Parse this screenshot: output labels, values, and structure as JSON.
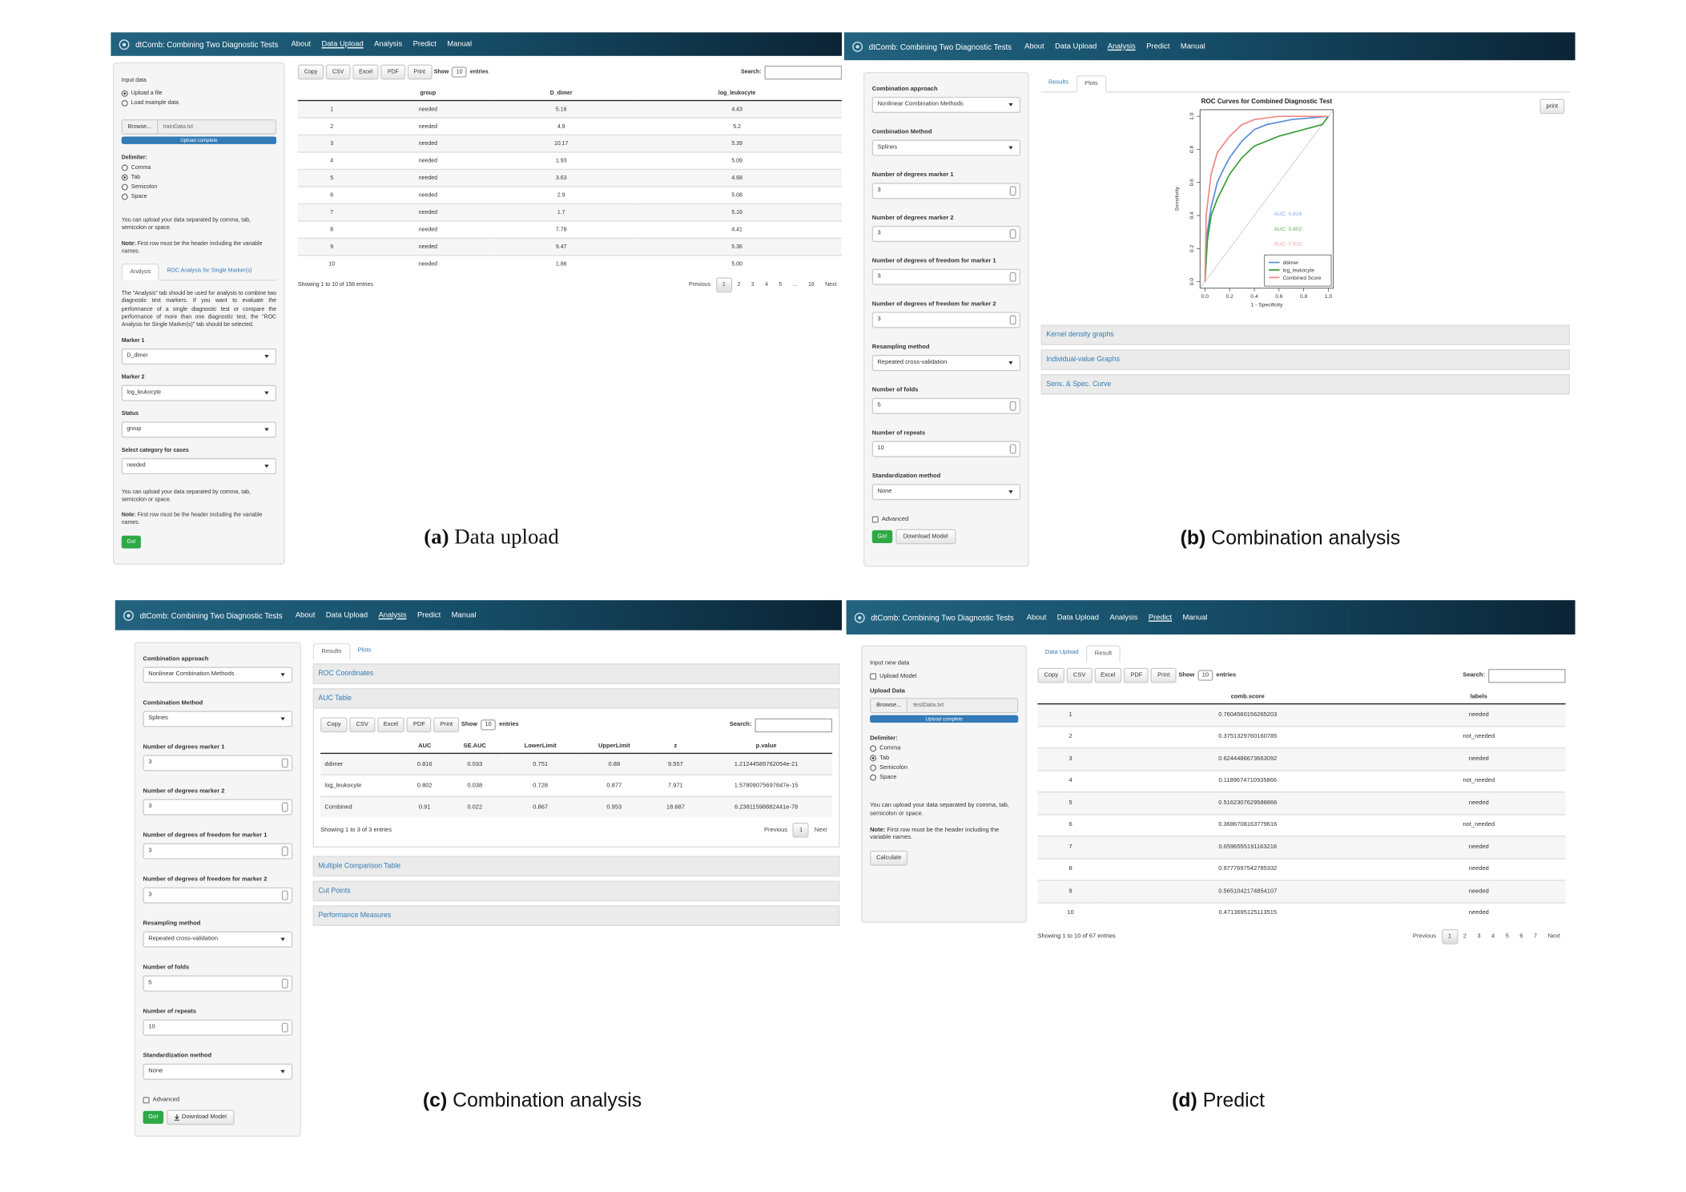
{
  "panels": [
    {
      "caption": {
        "label": "(a)",
        "text": "Data upload"
      },
      "navbar": {
        "brand": "dtComb: Combining Two Diagnostic Tests",
        "menu": [
          "About",
          "Data Upload",
          "Analysis",
          "Predict",
          "Manual"
        ],
        "active": 1
      },
      "sidebar": {
        "input_label": "Input data",
        "source": {
          "options": [
            "Upload a file",
            "Load example data"
          ],
          "selected": 0
        },
        "upload": {
          "button": "Browse...",
          "file": "trainData.txt",
          "status": "Upload complete"
        },
        "delimiter": {
          "label": "Delimiter:",
          "options": [
            "Comma",
            "Tab",
            "Semicolon",
            "Space"
          ],
          "selected": 1
        },
        "help": "You can upload your data separated by comma, tab, semicolon or space.",
        "note": {
          "label": "Note:",
          "text": "First row must be the header including the variable names."
        },
        "tabs": {
          "items": [
            "Analysis",
            "ROC Analysis for Single Marker(s)"
          ],
          "active": 0
        },
        "description": "The \"Analysis\" tab should be used for analysis to combine two diagnostic test markers. If you want to evaluate the performance of a single diagnostic test or compare the performance of more than one diagnostic test, the \"ROC Analysis for Single Marker(s)\" tab should be selected.",
        "fields": [
          {
            "label": "Marker 1",
            "select": "D_dimer"
          },
          {
            "label": "Marker 2",
            "select": "log_leukocyte"
          },
          {
            "label": "Status",
            "select": "group"
          },
          {
            "label": "Select category for cases",
            "select": "needed"
          }
        ],
        "help2": "You can upload your data separated by comma, tab, semicolon or space.",
        "note2": {
          "label": "Note:",
          "text": "First row must be the header including the variable names."
        },
        "go": "Go!"
      },
      "table": {
        "buttons": [
          "Copy",
          "CSV",
          "Excel",
          "PDF",
          "Print"
        ],
        "show": "Show",
        "length": "10",
        "entries": "entries",
        "search": "Search:",
        "columns": [
          "group",
          "D_dimer",
          "log_leukocyte"
        ],
        "rows": [
          [
            "1",
            "needed",
            "5.16",
            "4.43"
          ],
          [
            "2",
            "needed",
            "4.9",
            "5.2"
          ],
          [
            "3",
            "needed",
            "10.17",
            "5.39"
          ],
          [
            "4",
            "needed",
            "1.93",
            "5.09"
          ],
          [
            "5",
            "needed",
            "3.63",
            "4.68"
          ],
          [
            "6",
            "needed",
            "2.9",
            "5.08"
          ],
          [
            "7",
            "needed",
            "1.7",
            "5.16"
          ],
          [
            "8",
            "needed",
            "7.78",
            "4.41"
          ],
          [
            "9",
            "needed",
            "9.47",
            "5.36"
          ],
          [
            "10",
            "needed",
            "1.86",
            "5.00"
          ]
        ],
        "info": "Showing 1 to 10 of 156 entries",
        "pages": [
          "Previous",
          "1",
          "2",
          "3",
          "4",
          "5",
          "...",
          "16",
          "Next"
        ],
        "active_page": 1
      }
    },
    {
      "caption": {
        "label": "(b)",
        "text": "Combination analysis"
      },
      "navbar": {
        "brand": "dtComb: Combining Two Diagnostic Tests",
        "menu": [
          "About",
          "Data Upload",
          "Analysis",
          "Predict",
          "Manual"
        ],
        "active": 2
      },
      "sidebar": {
        "fields": [
          {
            "label": "Combination approach",
            "select": "Nonlinear Combination Methods"
          },
          {
            "label": "Combination Method",
            "select": "Splines"
          },
          {
            "label": "Number of degrees marker 1",
            "number": 3
          },
          {
            "label": "Number of degrees marker 2",
            "number": 3
          },
          {
            "label": "Number of degrees of freedom for marker 1",
            "number": 3
          },
          {
            "label": "Number of degrees of freedom for marker 2",
            "number": 3
          },
          {
            "label": "Resampling method",
            "select": "Repeated cross-validation"
          },
          {
            "label": "Number of folds",
            "number": 5
          },
          {
            "label": "Number of repeats",
            "number": 10
          },
          {
            "label": "Standardization method",
            "select": "None"
          }
        ],
        "advanced": "Advanced",
        "go": "Go!",
        "download": "Download Model"
      },
      "main": {
        "tabs": {
          "items": [
            "Results",
            "Plots"
          ],
          "active": 1
        },
        "print": "print",
        "chart_data": {
          "type": "line",
          "title": "ROC Curves for Combined Diagnostic Test",
          "x_label": "1 - Specificity",
          "y_label": "Sensitivity",
          "xlim": [
            -0.04,
            1.04
          ],
          "ylim": [
            -0.04,
            1.04
          ],
          "xticks": [
            {
              "value": 0,
              "label": "0.0"
            },
            {
              "value": 0.2,
              "label": "0.2"
            },
            {
              "value": 0.4,
              "label": "0.4"
            },
            {
              "value": 0.6,
              "label": "0.6"
            },
            {
              "value": 0.8,
              "label": "0.8"
            },
            {
              "value": 1,
              "label": "1.0"
            }
          ],
          "yticks": [
            {
              "value": 0,
              "label": "0.0"
            },
            {
              "value": 0.2,
              "label": "0.2"
            },
            {
              "value": 0.4,
              "label": "0.4"
            },
            {
              "value": 0.6,
              "label": "0.6"
            },
            {
              "value": 0.8,
              "label": "0.8"
            },
            {
              "value": 1,
              "label": "1.0"
            }
          ],
          "series": [
            {
              "name": "ddimer",
              "color": "#5b8fd6",
              "x": [
                0,
                0.02,
                0.05,
                0.1,
                0.15,
                0.2,
                0.3,
                0.4,
                0.5,
                0.7,
                1
              ],
              "values": [
                0,
                0.3,
                0.45,
                0.6,
                0.68,
                0.75,
                0.85,
                0.92,
                0.95,
                0.98,
                1
              ]
            },
            {
              "name": "log_leukocyte",
              "color": "#3a9c3a",
              "x": [
                0,
                0.02,
                0.05,
                0.1,
                0.2,
                0.3,
                0.4,
                0.6,
                0.8,
                0.95,
                1
              ],
              "values": [
                0,
                0.25,
                0.4,
                0.5,
                0.65,
                0.75,
                0.82,
                0.88,
                0.92,
                0.95,
                1
              ]
            },
            {
              "name": "Combined Score",
              "color": "#f08a8a",
              "x": [
                0,
                0.01,
                0.05,
                0.1,
                0.2,
                0.3,
                0.4,
                0.6,
                1
              ],
              "values": [
                0,
                0.4,
                0.65,
                0.78,
                0.88,
                0.95,
                0.98,
                1,
                1
              ]
            }
          ],
          "auc_labels": [
            "AUC: 0.816",
            "AUC: 0.802",
            "AUC: 0.910"
          ],
          "legend": "bottom-right"
        },
        "accordions": [
          "Kernel density graphs",
          "Individual-value Graphs",
          "Sens. & Spec. Curve"
        ]
      }
    },
    {
      "caption": {
        "label": "(c)",
        "text": "Combination analysis"
      },
      "navbar": {
        "brand": "dtComb: Combining Two Diagnostic Tests",
        "menu": [
          "About",
          "Data Upload",
          "Analysis",
          "Predict",
          "Manual"
        ],
        "active": 2
      },
      "sidebar": {
        "fields": [
          {
            "label": "Combination approach",
            "select": "Nonlinear Combination Methods"
          },
          {
            "label": "Combination Method",
            "select": "Splines"
          },
          {
            "label": "Number of degrees marker 1",
            "number": 3
          },
          {
            "label": "Number of degrees marker 2",
            "number": 3
          },
          {
            "label": "Number of degrees of freedom for marker 1",
            "number": 3
          },
          {
            "label": "Number of degrees of freedom for marker 2",
            "number": 3
          },
          {
            "label": "Resampling method",
            "select": "Repeated cross-validation"
          },
          {
            "label": "Number of folds",
            "number": 5
          },
          {
            "label": "Number of repeats",
            "number": 10
          },
          {
            "label": "Standardization method",
            "select": "None"
          }
        ],
        "advanced": "Advanced",
        "go": "Go!",
        "download": "Download Model"
      },
      "main": {
        "tabs": {
          "items": [
            "Results",
            "Plots"
          ],
          "active": 0
        },
        "accordions": [
          "ROC Coordinates",
          "AUC Table",
          "Multiple Comparison Table",
          "Cut Points",
          "Performance Measures"
        ],
        "open": 1,
        "table": {
          "buttons": [
            "Copy",
            "CSV",
            "Excel",
            "PDF",
            "Print"
          ],
          "show": "Show",
          "length": "10",
          "entries": "entries",
          "search": "Search:",
          "columns": [
            "AUC",
            "SE.AUC",
            "LowerLimit",
            "UpperLimit",
            "z",
            "p.value"
          ],
          "rows": [
            [
              "ddimer",
              "0.816",
              "0.033",
              "0.751",
              "0.88",
              "9.557",
              "1.21244585762054e-21"
            ],
            [
              "log_leukocyte",
              "0.802",
              "0.038",
              "0.728",
              "0.877",
              "7.971",
              "1.57809075697847e-15"
            ],
            [
              "Combined",
              "0.91",
              "0.022",
              "0.867",
              "0.953",
              "18.687",
              "6.23811598882441e-78"
            ]
          ],
          "info": "Showing 1 to 3 of 3 entries",
          "pages": [
            "Previous",
            "1",
            "Next"
          ],
          "active_page": 1
        }
      }
    },
    {
      "caption": {
        "label": "(d)",
        "text": "Predict"
      },
      "navbar": {
        "brand": "dtComb: Combining Two Diagnostic Tests",
        "menu": [
          "About",
          "Data Upload",
          "Analysis",
          "Predict",
          "Manual"
        ],
        "active": 3
      },
      "sidebar": {
        "input_label": "Input new data",
        "upload_model": "Upload Model",
        "upload_label": "Upload Data",
        "upload": {
          "button": "Browse...",
          "file": "testData.txt",
          "status": "Upload complete"
        },
        "delimiter": {
          "label": "Delimiter:",
          "options": [
            "Comma",
            "Tab",
            "Semicolon",
            "Space"
          ],
          "selected": 1
        },
        "help": "You can upload your data separated by comma, tab, semicolon or space.",
        "note": {
          "label": "Note:",
          "text": "First row must be the header including the variable names."
        },
        "calculate": "Calculate"
      },
      "main": {
        "tabs": {
          "items": [
            "Data Upload",
            "Result"
          ],
          "active": 1
        },
        "table": {
          "buttons": [
            "Copy",
            "CSV",
            "Excel",
            "PDF",
            "Print"
          ],
          "show": "Show",
          "length": "10",
          "entries": "entries",
          "search": "Search:",
          "columns": [
            "comb.score",
            "labels"
          ],
          "rows": [
            [
              "1",
              "0.7604560156265203",
              "needed"
            ],
            [
              "2",
              "0.3751329760160785",
              "not_needed"
            ],
            [
              "3",
              "0.6244486673663092",
              "needed"
            ],
            [
              "4",
              "0.1189674710935866",
              "not_needed"
            ],
            [
              "5",
              "0.5162307629588866",
              "needed"
            ],
            [
              "6",
              "0.3686708163779616",
              "not_needed"
            ],
            [
              "7",
              "0.6596555191163218",
              "needed"
            ],
            [
              "8",
              "0.9777697542785332",
              "needed"
            ],
            [
              "9",
              "0.5651042174854107",
              "needed"
            ],
            [
              "10",
              "0.4713695125113515",
              "needed"
            ]
          ],
          "info": "Showing 1 to 10 of 67 entries",
          "pages": [
            "Previous",
            "1",
            "2",
            "3",
            "4",
            "5",
            "6",
            "7",
            "Next"
          ],
          "active_page": 1
        }
      }
    }
  ]
}
